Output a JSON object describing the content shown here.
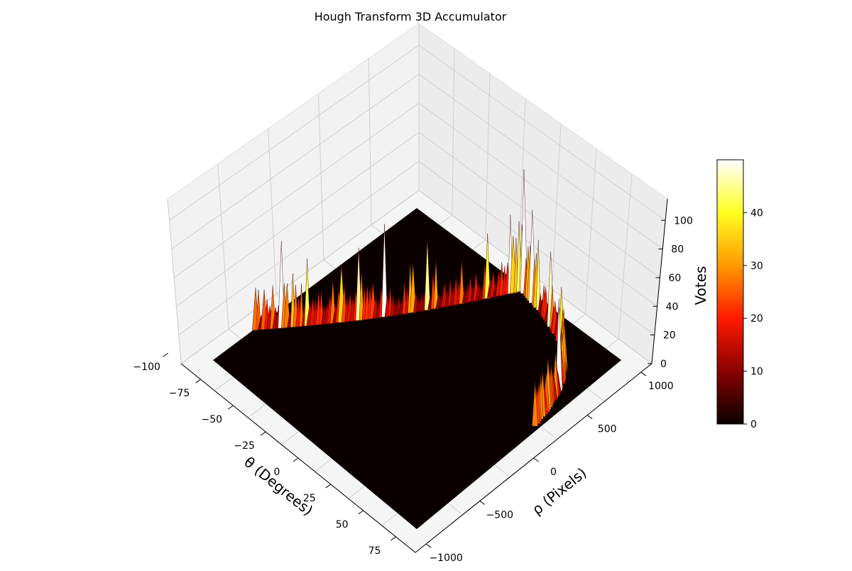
{
  "chart_data": {
    "type": "surface3d",
    "title": "Hough Transform 3D Accumulator",
    "xlabel": "θ (Degrees)",
    "ylabel": "ρ (Pixels)",
    "zlabel": "Votes",
    "x_ticks": [
      -100,
      -75,
      -50,
      -25,
      0,
      25,
      50,
      75
    ],
    "x_tick_labels": [
      "−100",
      "−75",
      "−50",
      "−25",
      "0",
      "25",
      "50",
      "75"
    ],
    "y_ticks": [
      -1000,
      -500,
      0,
      500,
      1000
    ],
    "y_tick_labels": [
      "−1000",
      "−500",
      "0",
      "500",
      "1000"
    ],
    "z_ticks": [
      0,
      20,
      40,
      60,
      80,
      100
    ],
    "z_tick_labels": [
      "0",
      "20",
      "40",
      "60",
      "80",
      "100"
    ],
    "xlim": [
      -90,
      90
    ],
    "ylim": [
      -1100,
      1100
    ],
    "zlim": [
      0,
      115
    ],
    "colormap": "hot",
    "colorbar": {
      "ticks": [
        0,
        10,
        20,
        30,
        40
      ],
      "tick_labels": [
        "0",
        "10",
        "20",
        "30",
        "40"
      ],
      "range": [
        0,
        50
      ]
    },
    "grid": true,
    "peak": {
      "theta": 90,
      "rho": 400,
      "votes": 115
    },
    "curve_notes": "Sinusoidal ridge of votes (≈10–40, spikes up to ≈115) along the far region of the accumulator"
  }
}
